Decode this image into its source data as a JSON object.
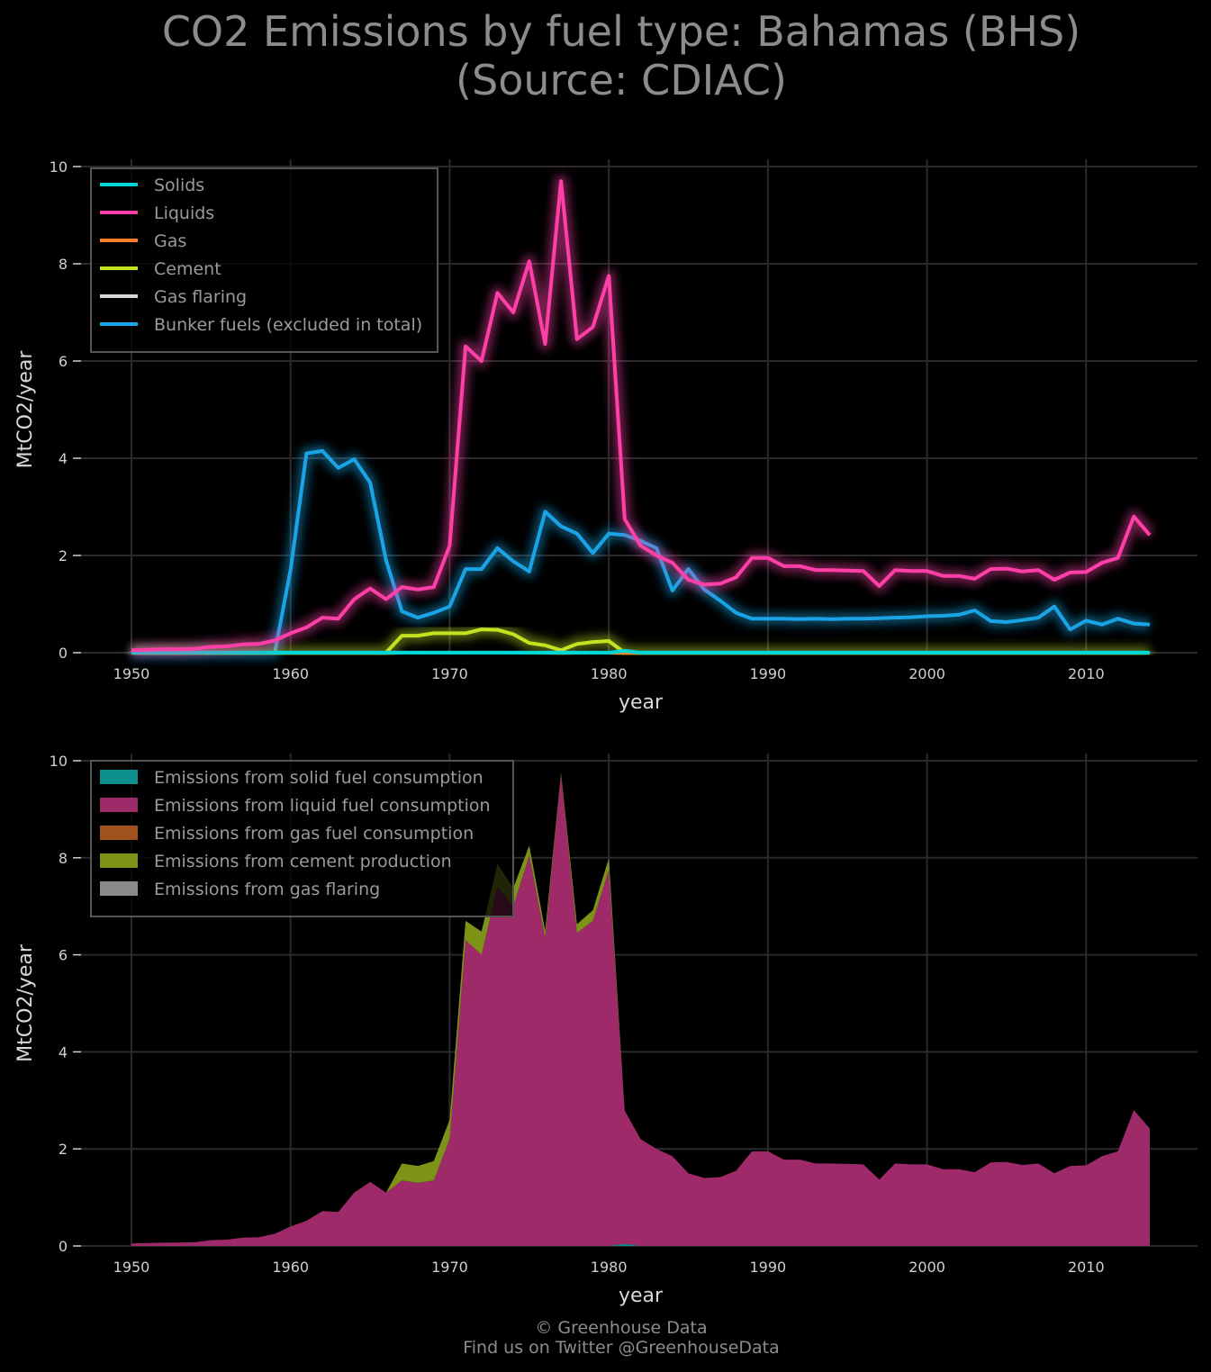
{
  "title": {
    "line1": "CO2 Emissions by fuel type: Bahamas (BHS)",
    "line2": "(Source: CDIAC)"
  },
  "footer": {
    "line1": "© Greenhouse Data",
    "line2": "Find us on Twitter @GreenhouseData"
  },
  "colors": {
    "solids": "#00d6d6",
    "liquids": "#ff3fa8",
    "gas": "#ff7f2a",
    "cement": "#c4e21f",
    "flaring": "#d9d9d9",
    "bunker": "#1aa4e6",
    "area_solids": "#0d8f8f",
    "area_liquids": "#9e2a6a",
    "area_gas": "#a0521c",
    "area_cement": "#7d9318",
    "area_flaring": "#8a8a8a"
  },
  "chart_data": [
    {
      "type": "line",
      "xlabel": "year",
      "ylabel": "MtCO2/year",
      "xlim": [
        1947,
        2017
      ],
      "ylim": [
        0,
        10
      ],
      "xticks": [
        1950,
        1960,
        1970,
        1980,
        1990,
        2000,
        2010
      ],
      "yticks": [
        0,
        2,
        4,
        6,
        8,
        10
      ],
      "grid": true,
      "legend_position": "top-left",
      "x": [
        1950,
        1951,
        1952,
        1953,
        1954,
        1955,
        1956,
        1957,
        1958,
        1959,
        1960,
        1961,
        1962,
        1963,
        1964,
        1965,
        1966,
        1967,
        1968,
        1969,
        1970,
        1971,
        1972,
        1973,
        1974,
        1975,
        1976,
        1977,
        1978,
        1979,
        1980,
        1981,
        1982,
        1983,
        1984,
        1985,
        1986,
        1987,
        1988,
        1989,
        1990,
        1991,
        1992,
        1993,
        1994,
        1995,
        1996,
        1997,
        1998,
        1999,
        2000,
        2001,
        2002,
        2003,
        2004,
        2005,
        2006,
        2007,
        2008,
        2009,
        2010,
        2011,
        2012,
        2013,
        2014
      ],
      "series": [
        {
          "name": "Solids",
          "color_key": "solids",
          "values": [
            0,
            0,
            0,
            0,
            0,
            0,
            0,
            0,
            0,
            0,
            0,
            0,
            0,
            0,
            0,
            0,
            0,
            0,
            0,
            0,
            0,
            0,
            0,
            0,
            0,
            0,
            0,
            0,
            0,
            0,
            0,
            0.04,
            0,
            0,
            0,
            0,
            0,
            0,
            0,
            0,
            0,
            0,
            0,
            0,
            0,
            0,
            0,
            0,
            0,
            0,
            0,
            0,
            0,
            0,
            0,
            0,
            0,
            0,
            0,
            0,
            0,
            0,
            0,
            0,
            0
          ]
        },
        {
          "name": "Liquids",
          "color_key": "liquids",
          "values": [
            0.05,
            0.06,
            0.07,
            0.07,
            0.08,
            0.12,
            0.13,
            0.17,
            0.18,
            0.25,
            0.4,
            0.52,
            0.72,
            0.7,
            1.1,
            1.32,
            1.1,
            1.35,
            1.3,
            1.35,
            2.2,
            6.3,
            6.0,
            7.4,
            7.0,
            8.05,
            6.35,
            9.7,
            6.45,
            6.7,
            7.75,
            2.75,
            2.2,
            2.0,
            1.85,
            1.5,
            1.4,
            1.42,
            1.55,
            1.95,
            1.95,
            1.78,
            1.78,
            1.7,
            1.7,
            1.69,
            1.68,
            1.37,
            1.7,
            1.68,
            1.68,
            1.58,
            1.58,
            1.52,
            1.72,
            1.73,
            1.67,
            1.7,
            1.5,
            1.65,
            1.66,
            1.85,
            1.95,
            2.8,
            2.42
          ]
        },
        {
          "name": "Gas",
          "color_key": "gas",
          "values": [
            0,
            0,
            0,
            0,
            0,
            0,
            0,
            0,
            0,
            0,
            0,
            0,
            0,
            0,
            0,
            0,
            0,
            0,
            0,
            0,
            0,
            0,
            0,
            0,
            0,
            0,
            0,
            0,
            0,
            0,
            0,
            0,
            0,
            0,
            0,
            0,
            0,
            0,
            0,
            0,
            0,
            0,
            0,
            0,
            0,
            0,
            0,
            0,
            0,
            0,
            0,
            0,
            0,
            0,
            0,
            0,
            0,
            0,
            0,
            0,
            0,
            0,
            0,
            0,
            0
          ]
        },
        {
          "name": "Cement",
          "color_key": "cement",
          "values": [
            0,
            0,
            0,
            0,
            0,
            0,
            0,
            0,
            0,
            0,
            0,
            0,
            0,
            0,
            0,
            0,
            0,
            0.35,
            0.35,
            0.4,
            0.4,
            0.4,
            0.48,
            0.47,
            0.38,
            0.2,
            0.15,
            0.05,
            0.18,
            0.22,
            0.24,
            0,
            0,
            0,
            0,
            0,
            0,
            0,
            0,
            0,
            0,
            0,
            0,
            0,
            0,
            0,
            0,
            0,
            0,
            0,
            0,
            0,
            0,
            0,
            0,
            0,
            0,
            0,
            0,
            0,
            0,
            0,
            0,
            0,
            0
          ]
        },
        {
          "name": "Gas flaring",
          "color_key": "flaring",
          "values": [
            0,
            0,
            0,
            0,
            0,
            0,
            0,
            0,
            0,
            0,
            0,
            0,
            0,
            0,
            0,
            0,
            0,
            0,
            0,
            0,
            0,
            0,
            0,
            0,
            0,
            0,
            0,
            0,
            0,
            0,
            0,
            0,
            0,
            0,
            0,
            0,
            0,
            0,
            0,
            0,
            0,
            0,
            0,
            0,
            0,
            0,
            0,
            0,
            0,
            0,
            0,
            0,
            0,
            0,
            0,
            0,
            0,
            0,
            0,
            0,
            0,
            0,
            0,
            0,
            0
          ]
        },
        {
          "name": "Bunker fuels (excluded in total)",
          "color_key": "bunker",
          "values": [
            0,
            0,
            0,
            0,
            0,
            0,
            0,
            0,
            0,
            0,
            1.7,
            4.1,
            4.15,
            3.8,
            3.98,
            3.5,
            1.9,
            0.85,
            0.72,
            0.82,
            0.95,
            1.72,
            1.72,
            2.15,
            1.88,
            1.67,
            2.9,
            2.6,
            2.45,
            2.05,
            2.45,
            2.42,
            2.3,
            2.15,
            1.28,
            1.72,
            1.3,
            1.07,
            0.82,
            0.7,
            0.7,
            0.7,
            0.69,
            0.7,
            0.69,
            0.7,
            0.7,
            0.71,
            0.72,
            0.73,
            0.75,
            0.76,
            0.78,
            0.87,
            0.65,
            0.63,
            0.67,
            0.72,
            0.95,
            0.48,
            0.66,
            0.58,
            0.7,
            0.6,
            0.58
          ]
        }
      ]
    },
    {
      "type": "area",
      "stacked": true,
      "xlabel": "year",
      "ylabel": "MtCO2/year",
      "xlim": [
        1947,
        2017
      ],
      "ylim": [
        0,
        10
      ],
      "xticks": [
        1950,
        1960,
        1970,
        1980,
        1990,
        2000,
        2010
      ],
      "yticks": [
        0,
        2,
        4,
        6,
        8,
        10
      ],
      "grid": true,
      "legend_position": "top-left",
      "series_from_line_chart": [
        "Solids",
        "Liquids",
        "Gas",
        "Cement",
        "Gas flaring"
      ],
      "series": [
        {
          "name": "Emissions from solid fuel consumption",
          "color_key": "area_solids",
          "source": "Solids"
        },
        {
          "name": "Emissions from liquid fuel consumption",
          "color_key": "area_liquids",
          "source": "Liquids"
        },
        {
          "name": "Emissions from gas fuel consumption",
          "color_key": "area_gas",
          "source": "Gas"
        },
        {
          "name": "Emissions from cement production",
          "color_key": "area_cement",
          "source": "Cement"
        },
        {
          "name": "Emissions from gas flaring",
          "color_key": "area_flaring",
          "source": "Gas flaring"
        }
      ]
    }
  ]
}
